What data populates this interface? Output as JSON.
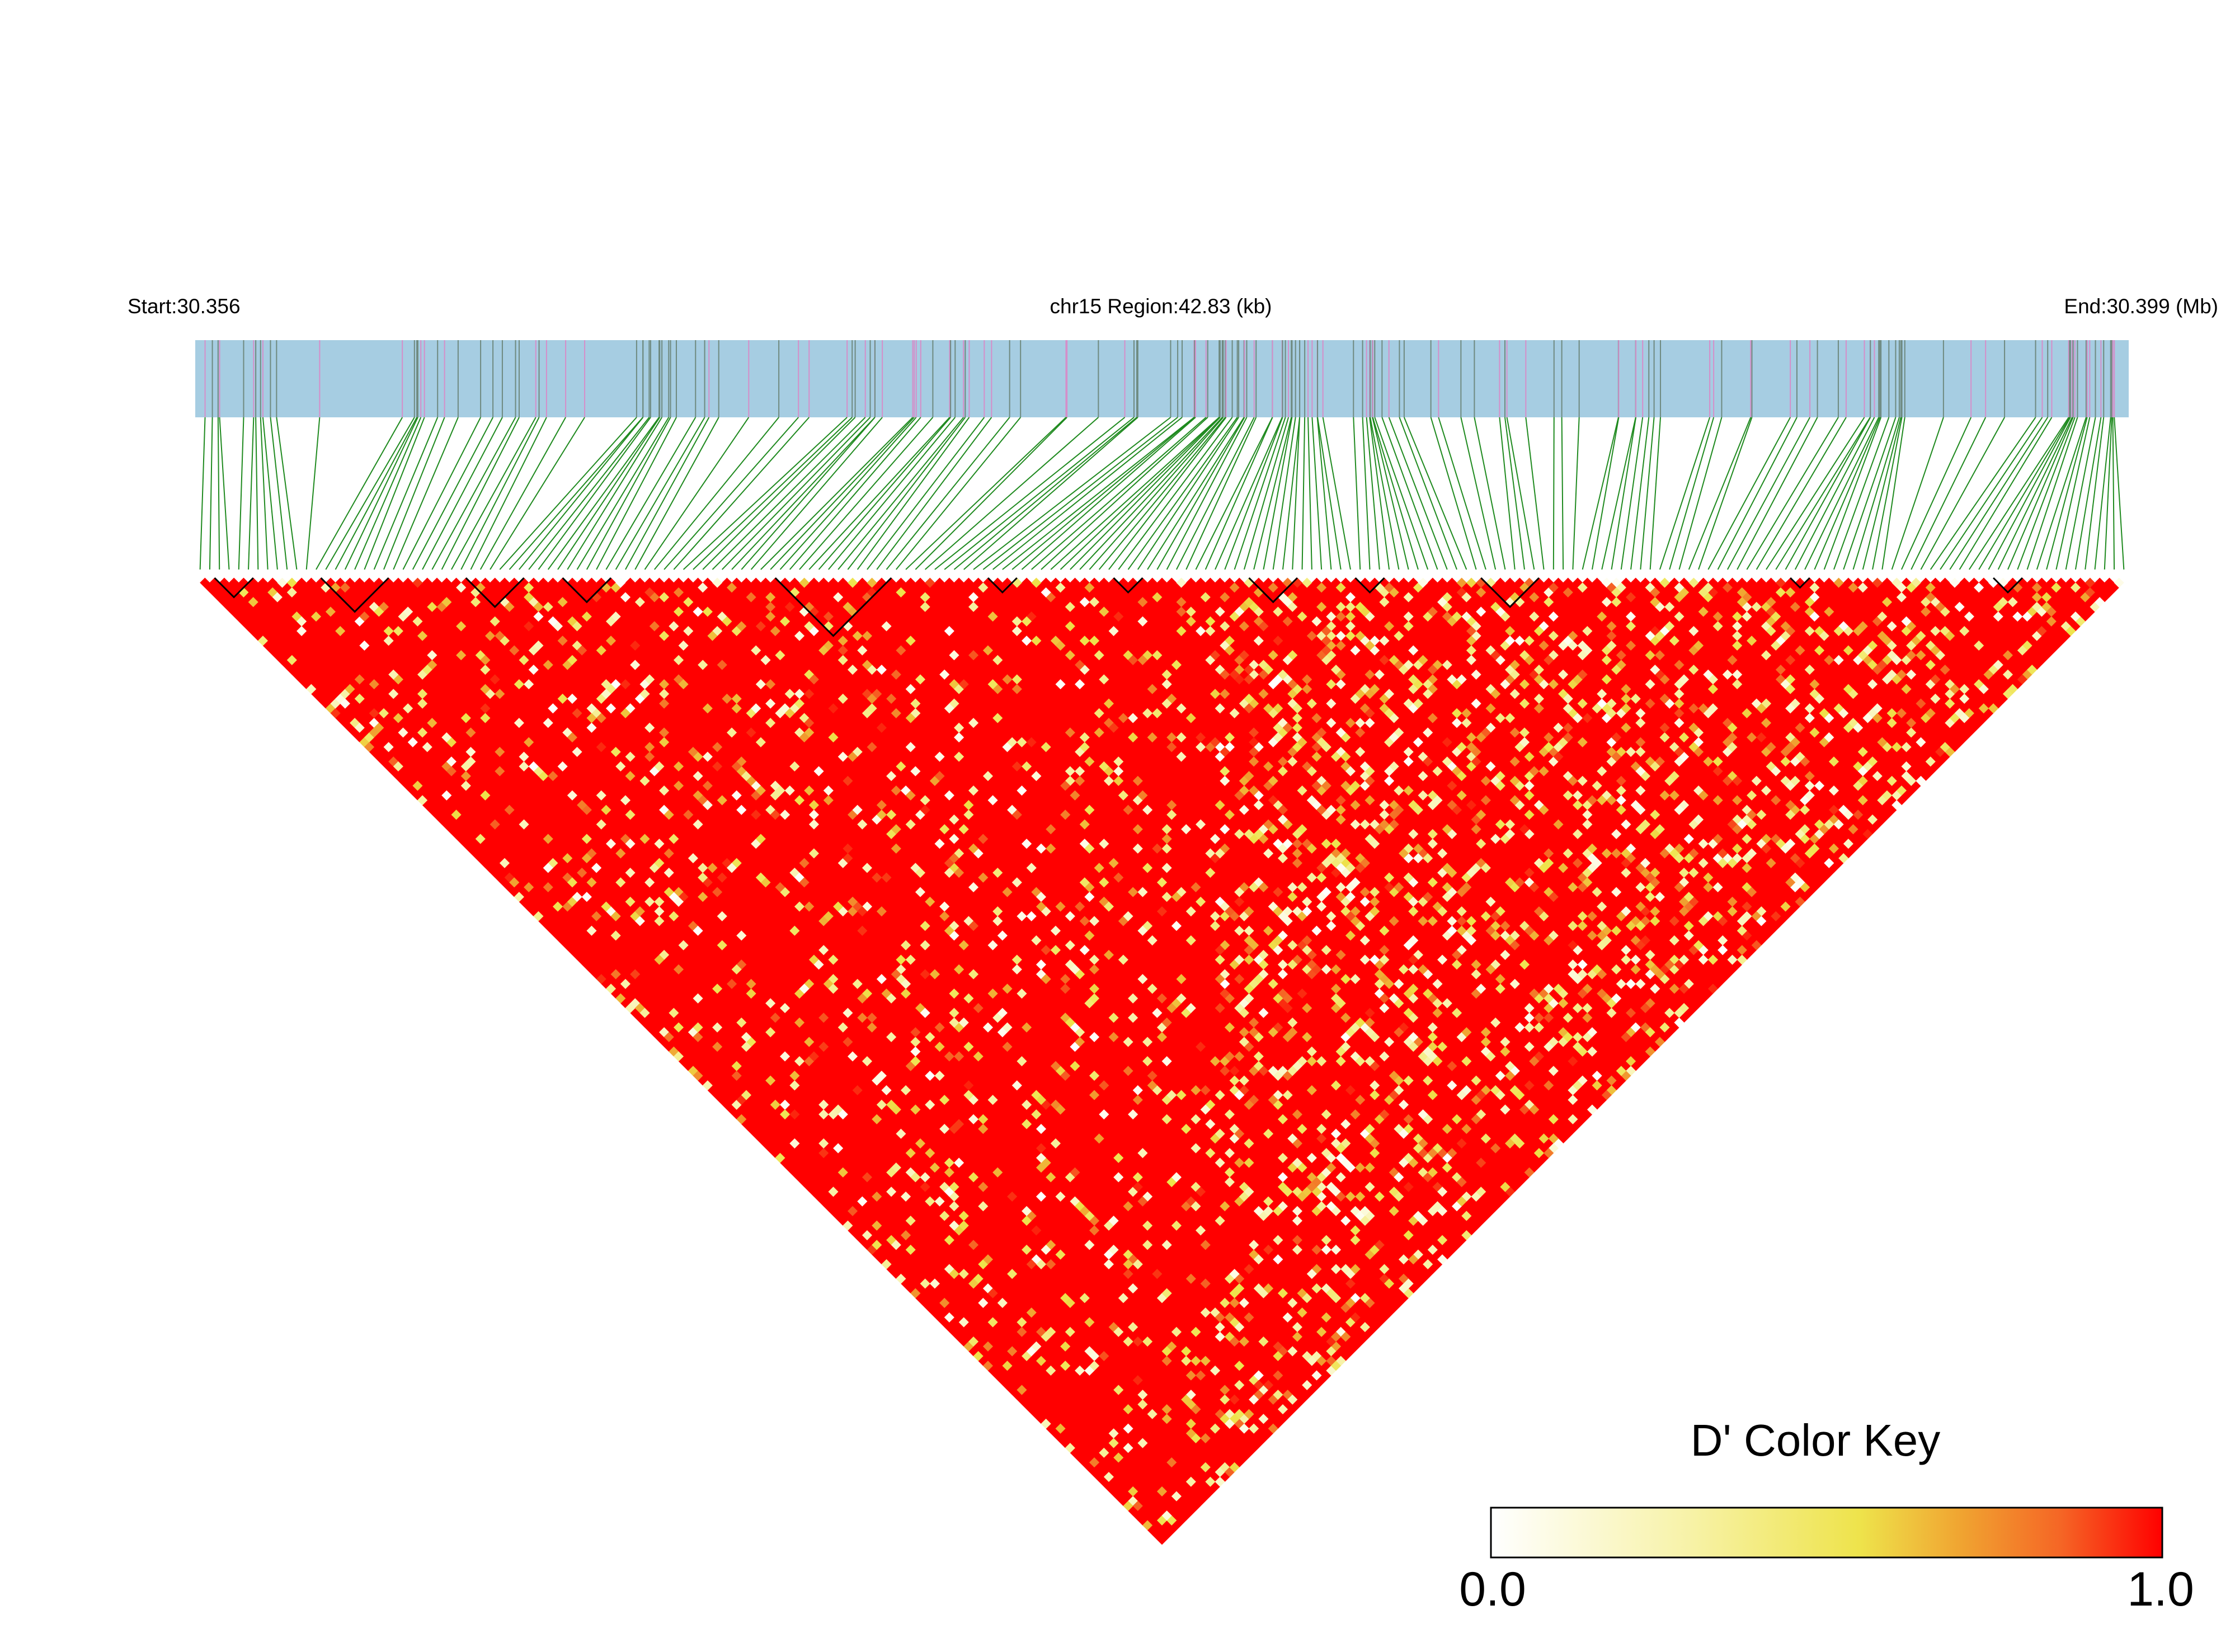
{
  "header": {
    "start_label": "Start:30.356",
    "region_label": "chr15 Region:42.83 (kb)",
    "end_label": "End:30.399 (Mb)"
  },
  "colors": {
    "track_fill": "#a6cde2",
    "snp_tick_dark": "#6f8a80",
    "snp_tick_pink": "#d58ec9",
    "connector_green": "#1f8a1f",
    "ld_high": "#ff0000",
    "ld_low": "#ffffff",
    "block_outline": "#000000"
  },
  "chart_data": {
    "type": "heatmap",
    "subtype": "LD-triangle",
    "chromosome": "chr15",
    "region_start_mb": 30.356,
    "region_end_mb": 30.399,
    "region_kb": 42.83,
    "snp_count": 200,
    "metric": "D'",
    "value_range": [
      0.0,
      1.0
    ],
    "dominant_value": 1.0,
    "haplotype_block_count": 12,
    "legend": {
      "title": "D' Color Key",
      "min_label": "0.0",
      "max_label": "1.0",
      "gradient": [
        "#ffffff",
        "#f8f3a8",
        "#efe24a",
        "#f0a030",
        "#f56a24",
        "#ff0000"
      ]
    }
  }
}
